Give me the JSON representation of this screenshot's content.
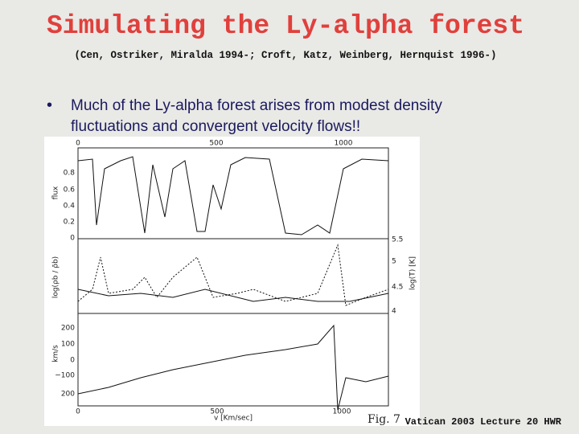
{
  "header": {
    "title": "Simulating the Ly-alpha forest",
    "citation": "(Cen, Ostriker, Miralda 1994-; Croft, Katz, Weinberg, Hernquist 1996-)"
  },
  "bullets": [
    "Much of the Ly-alpha forest arises from modest density fluctuations and convergent velocity flows!!"
  ],
  "figure": {
    "top_axis_ticks": [
      "0",
      "500",
      "1000"
    ],
    "bottom_axis_ticks": [
      "0",
      "500",
      "1000"
    ],
    "x_label": "v [Km/sec]",
    "flux_ticks": [
      "0.8",
      "0.6",
      "0.4",
      "0.2",
      "0"
    ],
    "flux_label": "flux",
    "density_label": "log(ρb / ρ̄b)",
    "temperature_ticks": [
      "5.5",
      "5",
      "4.5",
      "4"
    ],
    "temperature_label": "log(T) [K]",
    "velocity_ticks": [
      "200",
      "100",
      "0",
      "−100",
      "200"
    ],
    "velocity_label": "km/s",
    "caption": "Fig. 7"
  },
  "footer": "Vatican 2003 Lecture 20 HWR"
}
